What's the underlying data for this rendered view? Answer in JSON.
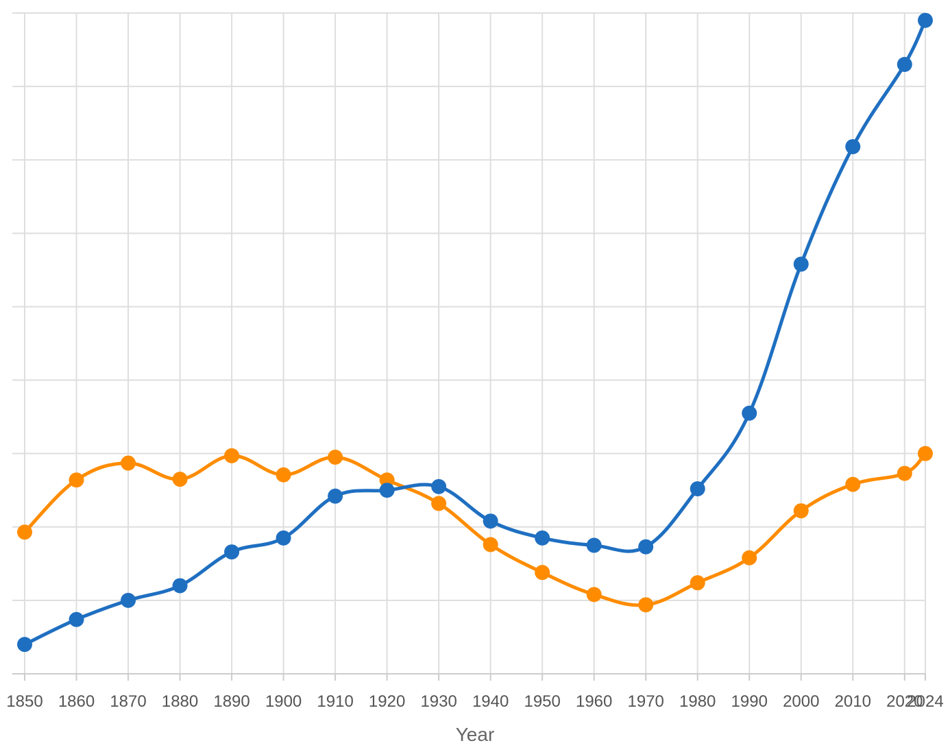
{
  "chart_data": {
    "type": "line",
    "title": "",
    "xlabel": "Year",
    "ylabel": "",
    "x": [
      1850,
      1860,
      1870,
      1880,
      1890,
      1900,
      1910,
      1920,
      1930,
      1940,
      1950,
      1960,
      1970,
      1980,
      1990,
      2000,
      2010,
      2020,
      2024
    ],
    "x_tick_labels": [
      "1850",
      "1860",
      "1870",
      "1880",
      "1890",
      "1900",
      "1910",
      "1920",
      "1930",
      "1940",
      "1950",
      "1960",
      "1970",
      "1980",
      "1990",
      "2000",
      "2010",
      "2020",
      "2024"
    ],
    "ylim": [
      0,
      9
    ],
    "y_gridlines": [
      0,
      1,
      2,
      3,
      4,
      5,
      6,
      7,
      8,
      9
    ],
    "grid": true,
    "series": [
      {
        "color": "#1f6fc1",
        "values": [
          0.4,
          0.74,
          1.0,
          1.2,
          1.66,
          1.85,
          2.42,
          2.5,
          2.55,
          2.08,
          1.85,
          1.75,
          1.73,
          2.52,
          3.55,
          5.58,
          7.18,
          8.3,
          8.9
        ]
      },
      {
        "color": "#ff8c00",
        "values": [
          1.93,
          2.64,
          2.87,
          2.65,
          2.97,
          2.71,
          2.95,
          2.64,
          2.32,
          1.76,
          1.38,
          1.08,
          0.94,
          1.24,
          1.58,
          2.22,
          2.58,
          2.73,
          3.0
        ]
      }
    ]
  }
}
